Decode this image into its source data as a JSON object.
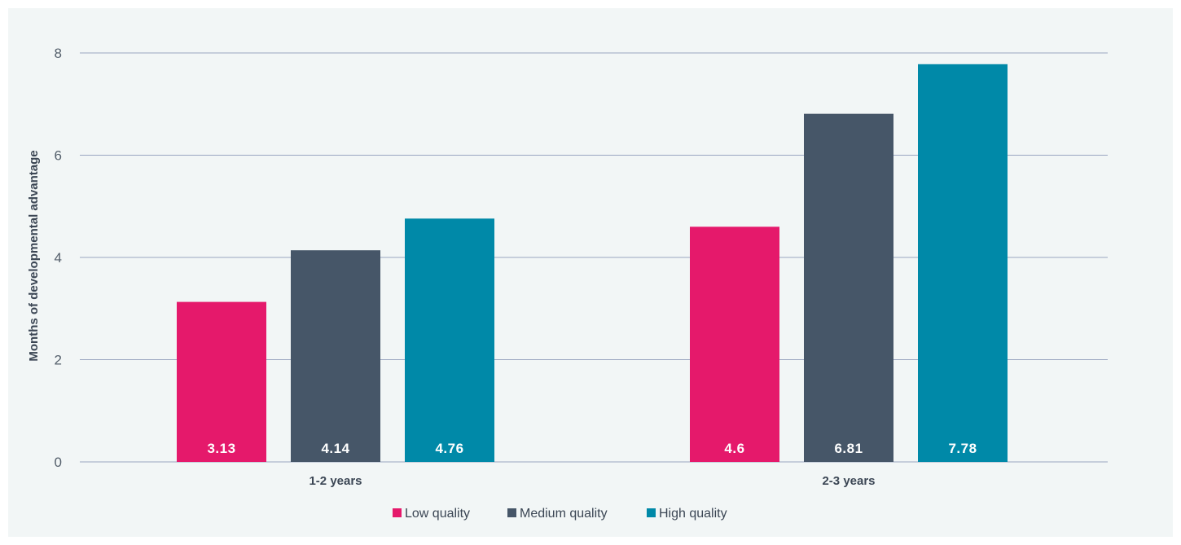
{
  "chart_data": {
    "type": "bar",
    "title": "",
    "xlabel": "",
    "ylabel": "Months of developmental advantage",
    "categories": [
      "1-2 years",
      "2-3 years"
    ],
    "series": [
      {
        "name": "Low quality",
        "color": "#e5196b",
        "values": [
          3.13,
          4.6
        ],
        "labels": [
          "3.13",
          "4.6"
        ]
      },
      {
        "name": "Medium quality",
        "color": "#465668",
        "values": [
          4.14,
          6.81
        ],
        "labels": [
          "4.14",
          "6.81"
        ]
      },
      {
        "name": "High quality",
        "color": "#0089a8",
        "values": [
          4.76,
          7.78
        ],
        "labels": [
          "4.76",
          "7.78"
        ]
      }
    ],
    "ylim": [
      0,
      8
    ],
    "yticks": [
      "0",
      "2",
      "4",
      "6",
      "8"
    ],
    "grid": true,
    "legend_position": "bottom-center"
  }
}
